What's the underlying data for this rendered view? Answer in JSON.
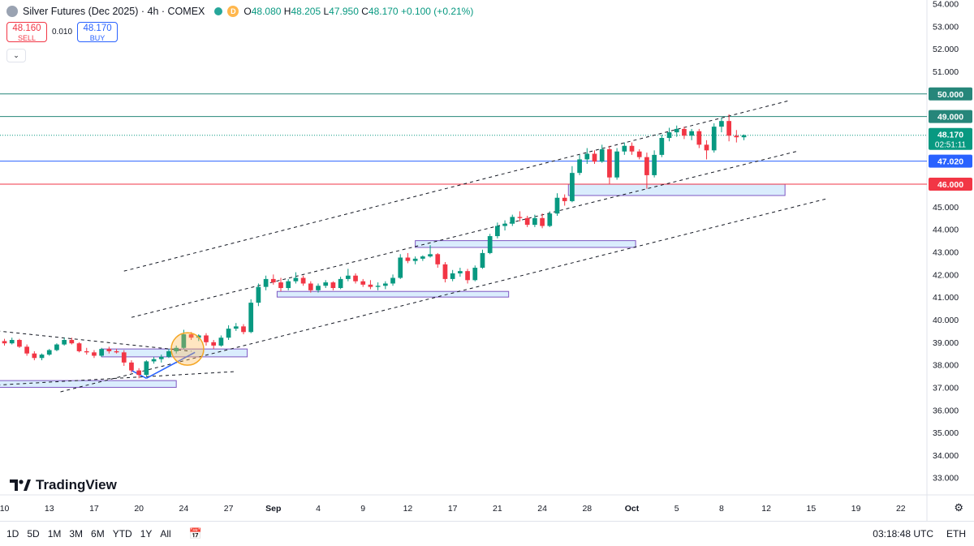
{
  "header": {
    "title": "Silver Futures (Dec 2025) · 4h · COMEX",
    "d_badge": "D",
    "o_label": "O",
    "o_value": "48.080",
    "h_label": "H",
    "h_value": "48.205",
    "l_label": "L",
    "l_value": "47.950",
    "c_label": "C",
    "c_value": "48.170",
    "change": "+0.100 (+0.21%)"
  },
  "trade": {
    "sell_price": "48.160",
    "sell_label": "SELL",
    "spread": "0.010",
    "buy_price": "48.170",
    "buy_label": "BUY"
  },
  "logo_text": "TradingView",
  "bottom": {
    "ranges": [
      "1D",
      "5D",
      "1M",
      "3M",
      "6M",
      "YTD",
      "1Y",
      "All"
    ],
    "time": "03:18:48 UTC",
    "session": "ETH"
  },
  "chart_data": {
    "type": "candlestick",
    "title": "Silver Futures (Dec 2025) · 4h · COMEX",
    "y_ticks": [
      "33.000",
      "34.000",
      "35.000",
      "36.000",
      "37.000",
      "38.000",
      "39.000",
      "40.000",
      "41.000",
      "42.000",
      "43.000",
      "44.000",
      "45.000",
      "46.000",
      "47.000",
      "48.000",
      "49.000",
      "50.000",
      "51.000",
      "52.000",
      "53.000",
      "54.000"
    ],
    "ylim": [
      32.9,
      54.0
    ],
    "x_ticks": [
      {
        "label": "10",
        "bar": 0
      },
      {
        "label": "13",
        "bar": 6
      },
      {
        "label": "17",
        "bar": 12
      },
      {
        "label": "20",
        "bar": 18
      },
      {
        "label": "24",
        "bar": 24
      },
      {
        "label": "27",
        "bar": 30
      },
      {
        "label": "Sep",
        "bar": 36
      },
      {
        "label": "4",
        "bar": 42
      },
      {
        "label": "9",
        "bar": 48
      },
      {
        "label": "12",
        "bar": 54
      },
      {
        "label": "17",
        "bar": 60
      },
      {
        "label": "21",
        "bar": 66
      },
      {
        "label": "24",
        "bar": 72
      },
      {
        "label": "28",
        "bar": 78
      },
      {
        "label": "Oct",
        "bar": 84
      },
      {
        "label": "5",
        "bar": 90
      },
      {
        "label": "8",
        "bar": 96
      },
      {
        "label": "12",
        "bar": 102
      },
      {
        "label": "15",
        "bar": 108
      },
      {
        "label": "19",
        "bar": 114
      },
      {
        "label": "22",
        "bar": 120
      }
    ],
    "xlim": [
      -0.6,
      123.5
    ],
    "price_lines": [
      {
        "value": 50.0,
        "label": "50.000",
        "color": "#26867a"
      },
      {
        "value": 49.0,
        "label": "49.000",
        "color": "#26867a"
      },
      {
        "value": 47.02,
        "label": "47.020",
        "color": "#2962ff"
      },
      {
        "value": 46.0,
        "label": "46.000",
        "color": "#f23645"
      }
    ],
    "last_price": {
      "value": 48.17,
      "label": "48.170",
      "countdown": "02:51:11",
      "color": "#089981"
    },
    "zones": [
      {
        "b0": -1,
        "b1": 23,
        "y0": 37.0,
        "y1": 37.3
      },
      {
        "b0": 13,
        "b1": 32.5,
        "y0": 38.35,
        "y1": 38.7
      },
      {
        "b0": 36.5,
        "b1": 67.5,
        "y0": 41.0,
        "y1": 41.25
      },
      {
        "b0": 55,
        "b1": 84.5,
        "y0": 43.2,
        "y1": 43.5
      },
      {
        "b0": 75.5,
        "b1": 104.5,
        "y0": 45.5,
        "y1": 46.0
      }
    ],
    "trendlines": [
      {
        "b0": 16,
        "v0": 42.15,
        "b1": 105,
        "v1": 49.7,
        "dash": true
      },
      {
        "b0": 17,
        "v0": 40.1,
        "b1": 106,
        "v1": 47.45,
        "dash": true
      },
      {
        "b0": 7.5,
        "v0": 36.8,
        "b1": 110,
        "v1": 45.35,
        "dash": true
      },
      {
        "b0": -1,
        "v0": 39.5,
        "b1": 25,
        "v1": 38.6,
        "dash": true
      },
      {
        "b0": -1,
        "v0": 37.1,
        "b1": 31,
        "v1": 37.7,
        "dash": true
      },
      {
        "b0": 17,
        "v0": 37.75,
        "b1": 19,
        "v1": 37.4,
        "dash": false
      },
      {
        "b0": 19,
        "v0": 37.4,
        "b1": 25.5,
        "v1": 38.55,
        "dash": false
      }
    ],
    "marker_circle": {
      "bar": 24.5,
      "value": 38.7
    },
    "candles": [
      [
        39.05,
        39.15,
        38.85,
        38.95
      ],
      [
        38.95,
        39.2,
        38.9,
        39.1
      ],
      [
        39.1,
        39.15,
        38.75,
        38.8
      ],
      [
        38.8,
        38.9,
        38.4,
        38.5
      ],
      [
        38.5,
        38.6,
        38.2,
        38.3
      ],
      [
        38.3,
        38.5,
        38.2,
        38.45
      ],
      [
        38.45,
        38.7,
        38.4,
        38.65
      ],
      [
        38.65,
        38.95,
        38.6,
        38.9
      ],
      [
        38.9,
        39.2,
        38.85,
        39.1
      ],
      [
        39.1,
        39.2,
        38.9,
        38.95
      ],
      [
        38.95,
        39.0,
        38.55,
        38.6
      ],
      [
        38.6,
        38.75,
        38.45,
        38.55
      ],
      [
        38.55,
        38.65,
        38.3,
        38.4
      ],
      [
        38.4,
        38.75,
        38.35,
        38.7
      ],
      [
        38.7,
        38.8,
        38.5,
        38.6
      ],
      [
        38.6,
        38.7,
        38.5,
        38.55
      ],
      [
        38.55,
        38.65,
        37.95,
        38.1
      ],
      [
        38.1,
        38.2,
        37.65,
        37.75
      ],
      [
        37.75,
        37.85,
        37.4,
        37.55
      ],
      [
        37.55,
        38.2,
        37.5,
        38.15
      ],
      [
        38.15,
        38.35,
        38.05,
        38.25
      ],
      [
        38.25,
        38.45,
        38.1,
        38.35
      ],
      [
        38.35,
        38.7,
        38.3,
        38.6
      ],
      [
        38.6,
        38.85,
        38.5,
        38.75
      ],
      [
        38.75,
        39.55,
        38.7,
        39.35
      ],
      [
        39.35,
        39.45,
        39.1,
        39.2
      ],
      [
        39.2,
        39.35,
        39.05,
        39.3
      ],
      [
        39.3,
        39.4,
        38.85,
        39.0
      ],
      [
        39.0,
        39.1,
        38.7,
        38.85
      ],
      [
        38.85,
        39.3,
        38.8,
        39.2
      ],
      [
        39.2,
        39.75,
        39.1,
        39.6
      ],
      [
        39.6,
        39.85,
        39.5,
        39.7
      ],
      [
        39.7,
        39.8,
        39.35,
        39.45
      ],
      [
        39.45,
        40.9,
        39.4,
        40.75
      ],
      [
        40.75,
        41.6,
        40.6,
        41.45
      ],
      [
        41.45,
        41.95,
        41.3,
        41.8
      ],
      [
        41.8,
        42.0,
        41.55,
        41.65
      ],
      [
        41.65,
        41.85,
        41.25,
        41.4
      ],
      [
        41.4,
        41.8,
        41.3,
        41.7
      ],
      [
        41.7,
        42.1,
        41.6,
        41.85
      ],
      [
        41.85,
        41.95,
        41.5,
        41.6
      ],
      [
        41.6,
        41.7,
        41.2,
        41.3
      ],
      [
        41.3,
        41.6,
        41.2,
        41.5
      ],
      [
        41.5,
        41.75,
        41.4,
        41.65
      ],
      [
        41.65,
        41.7,
        41.3,
        41.4
      ],
      [
        41.4,
        41.9,
        41.35,
        41.8
      ],
      [
        41.8,
        42.25,
        41.7,
        41.95
      ],
      [
        41.95,
        42.05,
        41.6,
        41.7
      ],
      [
        41.7,
        41.8,
        41.45,
        41.55
      ],
      [
        41.55,
        41.75,
        41.35,
        41.45
      ],
      [
        41.45,
        41.65,
        41.3,
        41.5
      ],
      [
        41.5,
        41.7,
        41.35,
        41.6
      ],
      [
        41.6,
        42.0,
        41.5,
        41.85
      ],
      [
        41.85,
        42.9,
        41.8,
        42.75
      ],
      [
        42.75,
        42.95,
        42.5,
        42.6
      ],
      [
        42.6,
        42.8,
        42.45,
        42.7
      ],
      [
        42.7,
        42.85,
        42.6,
        42.8
      ],
      [
        42.8,
        43.3,
        42.75,
        42.9
      ],
      [
        42.9,
        42.95,
        42.3,
        42.45
      ],
      [
        42.45,
        42.55,
        41.65,
        41.8
      ],
      [
        41.8,
        42.2,
        41.7,
        42.05
      ],
      [
        42.05,
        42.3,
        41.9,
        42.15
      ],
      [
        42.15,
        42.25,
        41.6,
        41.75
      ],
      [
        41.75,
        42.4,
        41.7,
        42.3
      ],
      [
        42.3,
        43.1,
        42.25,
        42.95
      ],
      [
        42.95,
        43.8,
        42.9,
        43.7
      ],
      [
        43.7,
        44.3,
        43.6,
        44.15
      ],
      [
        44.15,
        44.4,
        43.95,
        44.25
      ],
      [
        44.25,
        44.65,
        44.15,
        44.55
      ],
      [
        44.55,
        44.8,
        44.35,
        44.5
      ],
      [
        44.5,
        44.6,
        44.1,
        44.2
      ],
      [
        44.2,
        44.65,
        44.1,
        44.5
      ],
      [
        44.5,
        44.7,
        44.05,
        44.15
      ],
      [
        44.15,
        44.8,
        44.1,
        44.7
      ],
      [
        44.7,
        45.6,
        44.6,
        45.4
      ],
      [
        45.4,
        45.55,
        45.05,
        45.25
      ],
      [
        45.25,
        46.8,
        45.2,
        46.5
      ],
      [
        46.5,
        47.3,
        46.4,
        47.1
      ],
      [
        47.1,
        47.6,
        46.9,
        47.35
      ],
      [
        47.35,
        47.5,
        46.9,
        47.0
      ],
      [
        47.0,
        47.75,
        46.95,
        47.55
      ],
      [
        47.55,
        47.7,
        46.0,
        46.3
      ],
      [
        46.3,
        47.6,
        46.2,
        47.45
      ],
      [
        47.45,
        47.85,
        47.3,
        47.7
      ],
      [
        47.7,
        47.85,
        47.3,
        47.45
      ],
      [
        47.45,
        47.55,
        47.1,
        47.2
      ],
      [
        47.2,
        47.4,
        45.8,
        46.4
      ],
      [
        46.4,
        47.5,
        46.3,
        47.3
      ],
      [
        47.3,
        48.2,
        47.2,
        48.05
      ],
      [
        48.05,
        48.5,
        47.9,
        48.3
      ],
      [
        48.3,
        48.6,
        48.1,
        48.45
      ],
      [
        48.45,
        48.55,
        48.0,
        48.15
      ],
      [
        48.15,
        48.45,
        47.95,
        48.35
      ],
      [
        48.35,
        48.45,
        47.6,
        47.75
      ],
      [
        47.75,
        47.95,
        47.1,
        47.5
      ],
      [
        47.5,
        48.7,
        47.4,
        48.55
      ],
      [
        48.55,
        48.95,
        48.3,
        48.8
      ],
      [
        48.8,
        49.1,
        47.9,
        48.15
      ],
      [
        48.15,
        48.4,
        47.85,
        48.08
      ],
      [
        48.08,
        48.205,
        47.95,
        48.17
      ]
    ]
  }
}
